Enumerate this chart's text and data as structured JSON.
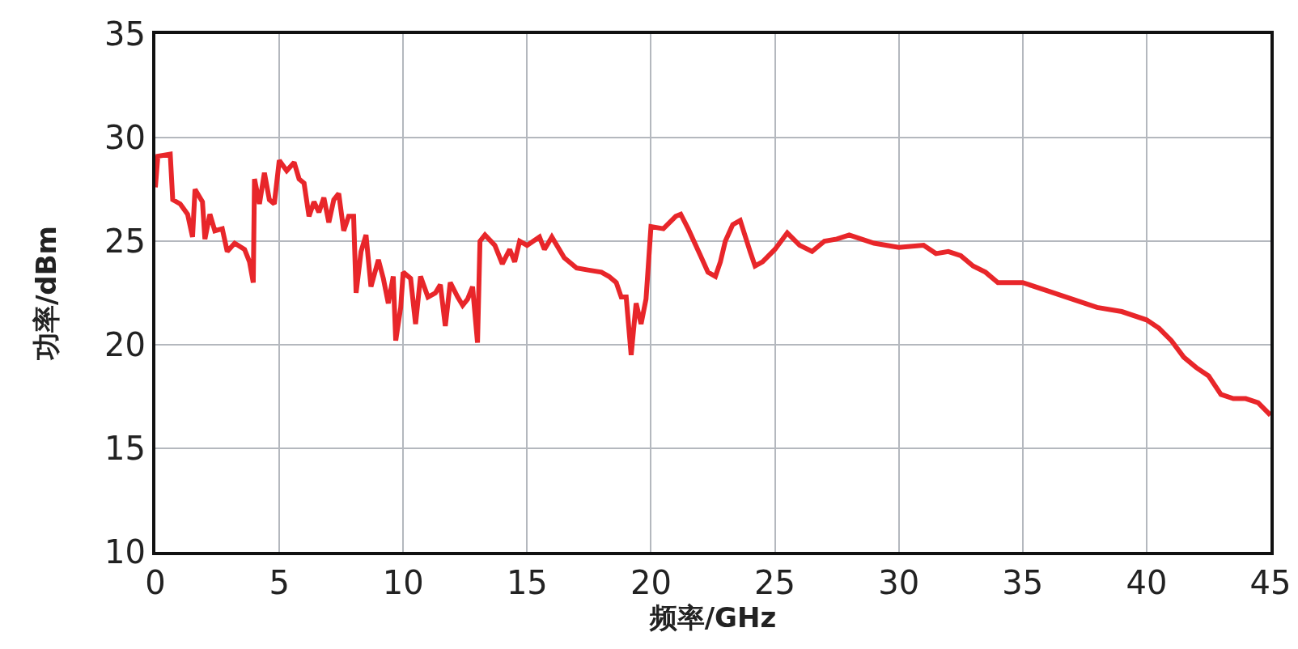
{
  "chart_data": {
    "type": "line",
    "xlabel": "频率/GHz",
    "ylabel": "功率/dBm",
    "x": [
      0,
      0.1,
      0.6,
      0.7,
      1.0,
      1.3,
      1.5,
      1.6,
      1.9,
      2.0,
      2.2,
      2.4,
      2.7,
      2.9,
      3.2,
      3.6,
      3.8,
      3.95,
      4.0,
      4.2,
      4.4,
      4.6,
      4.8,
      5.0,
      5.3,
      5.6,
      5.8,
      6.0,
      6.2,
      6.4,
      6.6,
      6.8,
      7.0,
      7.2,
      7.4,
      7.6,
      7.8,
      8.0,
      8.1,
      8.3,
      8.5,
      8.7,
      9.0,
      9.2,
      9.4,
      9.6,
      9.7,
      9.9,
      10.0,
      10.3,
      10.5,
      10.7,
      11.0,
      11.3,
      11.5,
      11.7,
      11.9,
      12.2,
      12.4,
      12.6,
      12.8,
      13.0,
      13.1,
      13.3,
      13.7,
      14.0,
      14.3,
      14.5,
      14.7,
      15.0,
      15.5,
      15.7,
      16.0,
      16.5,
      17.0,
      17.5,
      18.0,
      18.3,
      18.6,
      18.8,
      19.0,
      19.2,
      19.4,
      19.6,
      19.8,
      20.0,
      20.5,
      21.0,
      21.2,
      21.5,
      22.0,
      22.3,
      22.6,
      22.8,
      23.0,
      23.3,
      23.6,
      24.0,
      24.2,
      24.5,
      25.0,
      25.5,
      26.0,
      26.5,
      27.0,
      27.5,
      28.0,
      29.0,
      30.0,
      31.0,
      31.5,
      32.0,
      32.5,
      33.0,
      33.5,
      34.0,
      34.5,
      35.0,
      36.0,
      37.0,
      38.0,
      39.0,
      40.0,
      40.5,
      41.0,
      41.5,
      42.0,
      42.5,
      43.0,
      43.5,
      44.0,
      44.5,
      45.0
    ],
    "series": [
      {
        "color": "#e8262a",
        "values": [
          27.6,
          29.1,
          29.2,
          27.0,
          26.8,
          26.3,
          25.2,
          27.5,
          26.9,
          25.1,
          26.3,
          25.5,
          25.6,
          24.5,
          24.9,
          24.6,
          24.0,
          23.0,
          28.0,
          26.8,
          28.3,
          27.0,
          26.8,
          28.9,
          28.4,
          28.8,
          28.0,
          27.8,
          26.2,
          26.9,
          26.4,
          27.1,
          25.9,
          27.0,
          27.3,
          25.5,
          26.2,
          26.2,
          22.5,
          24.5,
          25.3,
          22.8,
          24.1,
          23.2,
          22.0,
          23.3,
          20.2,
          21.8,
          23.5,
          23.2,
          21.0,
          23.3,
          22.3,
          22.5,
          22.9,
          20.9,
          23.0,
          22.3,
          21.9,
          22.2,
          22.8,
          20.1,
          25.0,
          25.3,
          24.8,
          23.9,
          24.6,
          24.0,
          25.0,
          24.8,
          25.2,
          24.6,
          25.2,
          24.2,
          23.7,
          23.6,
          23.5,
          23.3,
          23.0,
          22.3,
          22.3,
          19.5,
          22.0,
          21.0,
          22.2,
          25.7,
          25.6,
          26.2,
          26.3,
          25.6,
          24.3,
          23.5,
          23.3,
          24.0,
          25.0,
          25.8,
          26.0,
          24.5,
          23.8,
          24.0,
          24.6,
          25.4,
          24.8,
          24.5,
          25.0,
          25.1,
          25.3,
          24.9,
          24.7,
          24.8,
          24.4,
          24.5,
          24.3,
          23.8,
          23.5,
          23.0,
          23.0,
          23.0,
          22.6,
          22.2,
          21.8,
          21.6,
          21.2,
          20.8,
          20.2,
          19.4,
          18.9,
          18.5,
          17.6,
          17.4,
          17.4,
          17.2,
          16.6
        ]
      }
    ],
    "xlim": [
      0,
      45
    ],
    "xticks": [
      0,
      5,
      10,
      15,
      20,
      25,
      30,
      35,
      40,
      45
    ],
    "ylim": [
      10,
      35
    ],
    "yticks": [
      10,
      15,
      20,
      25,
      30,
      35
    ],
    "grid": true,
    "marker": "none",
    "line_style": "solid"
  }
}
